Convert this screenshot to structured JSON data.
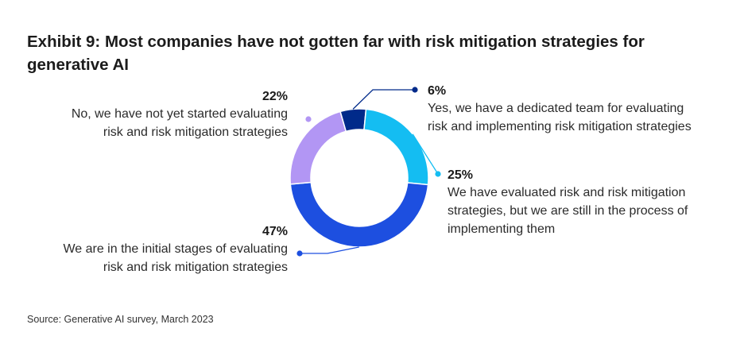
{
  "title": "Exhibit 9: Most companies have not gotten far with risk mitigation strategies for generative AI",
  "source": "Source: Generative AI survey, March 2023",
  "chart_data": {
    "type": "pie",
    "variant": "donut",
    "title": "Exhibit 9: Most companies have not gotten far with risk mitigation strategies for generative AI",
    "series": [
      {
        "name": "dedicated-team",
        "value": 6,
        "value_label": "6%",
        "label_lines": [
          "Yes, we have a dedicated team for evaluating",
          "risk and implementing risk mitigation strategies"
        ],
        "color": "#002a8a"
      },
      {
        "name": "evaluated-in-process",
        "value": 25,
        "value_label": "25%",
        "label_lines": [
          "We have evaluated risk and risk mitigation",
          "strategies, but we are still in the process of",
          "implementing them"
        ],
        "color": "#14bdf2"
      },
      {
        "name": "initial-stages",
        "value": 47,
        "value_label": "47%",
        "label_lines": [
          "We are in the initial stages of evaluating",
          "risk and risk mitigation strategies"
        ],
        "color": "#1d4fe0"
      },
      {
        "name": "not-started",
        "value": 22,
        "value_label": "22%",
        "label_lines": [
          "No, we have not yet started evaluating",
          "risk and risk mitigation strategies"
        ],
        "color": "#b296f4"
      }
    ],
    "start": "top-slightly-left, clockwise"
  }
}
